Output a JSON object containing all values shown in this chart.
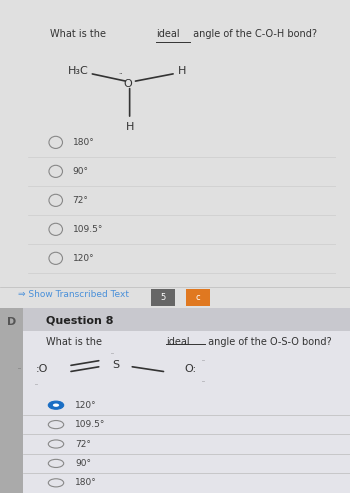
{
  "bg_overall": "#e0e0e0",
  "top_panel_bg": "#ebebeb",
  "bottom_panel_bg": "#d8d8de",
  "content_bg": "#e4e4ea",
  "header_bg": "#c8c8ce",
  "left_bar_color": "#aaaaaa",
  "separator_color": "#cccccc",
  "text_color": "#333333",
  "blue_link_color": "#4a90d9",
  "nav_btn1_color": "#666666",
  "nav_btn2_color": "#e07820",
  "radio_empty_color": "#888888",
  "radio_filled_color": "#1a6ec4",
  "option_text_color": "#444444",
  "q1_options": [
    "180°",
    "90°",
    "72°",
    "109.5°",
    "120°"
  ],
  "q1_selected": null,
  "q2_options": [
    "120°",
    "109.5°",
    "72°",
    "90°",
    "180°"
  ],
  "q2_selected": 0,
  "show_transcribed_text": "Show Transcribed Text",
  "question8_label": "Question 8",
  "font_size_question": 7,
  "font_size_option": 6.5,
  "font_size_q8label": 8
}
